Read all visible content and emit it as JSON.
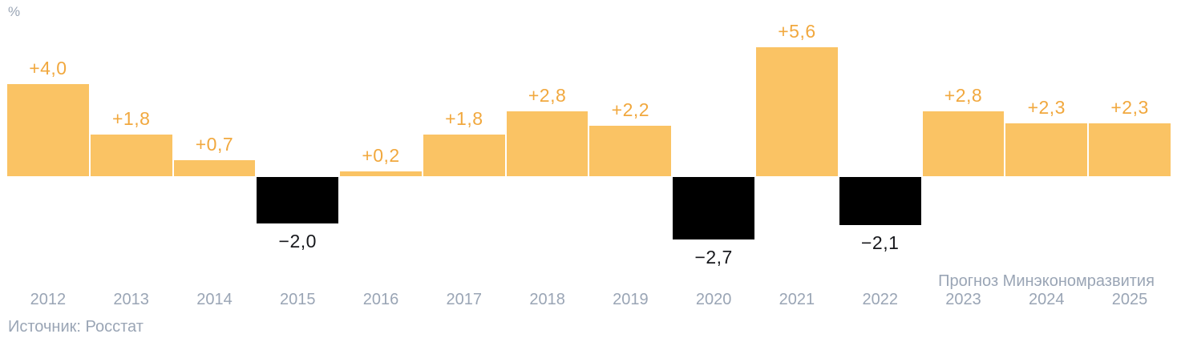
{
  "unit_label": "%",
  "source_note": "Источник: Росстат",
  "forecast_note": "Прогноз Минэкономразвития",
  "colors": {
    "bar_positive": "#FAC364",
    "bar_negative": "#000000",
    "value_label_positive": "#F1A83E",
    "value_label_negative": "#17181C",
    "axis_text": "#9AA5B5"
  },
  "chart_data": {
    "type": "bar",
    "title": "",
    "ylabel": "%",
    "xlabel": "",
    "categories": [
      "2012",
      "2013",
      "2014",
      "2015",
      "2016",
      "2017",
      "2018",
      "2019",
      "2020",
      "2021",
      "2022",
      "2023",
      "2024",
      "2025"
    ],
    "values": [
      4.0,
      1.8,
      0.7,
      -2.0,
      0.2,
      1.8,
      2.8,
      2.2,
      -2.7,
      5.6,
      -2.1,
      2.8,
      2.3,
      2.3
    ],
    "value_labels": [
      "+4,0",
      "+1,8",
      "+0,7",
      "−2,0",
      "+0,2",
      "+1,8",
      "+2,8",
      "+2,2",
      "−2,7",
      "+5,6",
      "−2,1",
      "+2,8",
      "+2,3",
      "+2,3"
    ],
    "forecast_categories": [
      "2023",
      "2024",
      "2025"
    ],
    "forecast_note": "Прогноз Минэкономразвития",
    "ylim": [
      -3,
      6
    ],
    "grid": false,
    "legend": false,
    "annotations": [
      "Источник: Росстат"
    ]
  }
}
